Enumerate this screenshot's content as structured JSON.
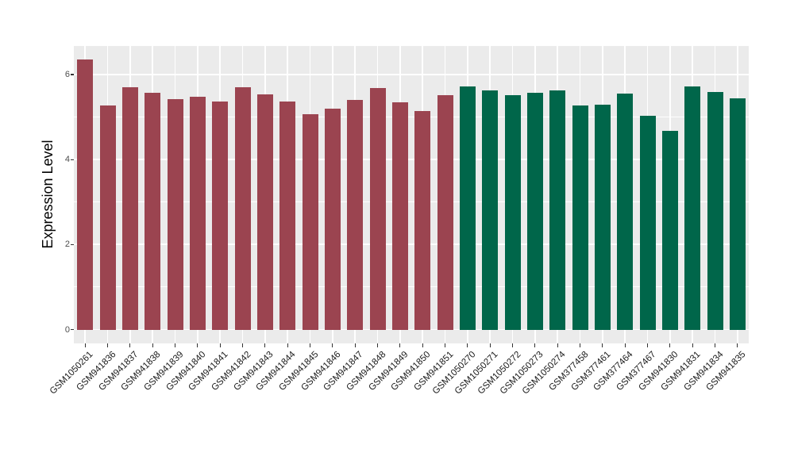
{
  "figure": {
    "background_color": "#FFFFFF",
    "panel_background_color": "#EBEBEB",
    "gridline_color": "#FFFFFF",
    "axis_text_color": "#4D4D4D",
    "x_label_color": "#1a1a1a",
    "axis_title_color": "#000000"
  },
  "chart_data": {
    "type": "bar",
    "title": "",
    "xlabel": "",
    "ylabel": "Expression Level",
    "ylim": [
      0,
      6.7
    ],
    "yticks_major": [
      0,
      2,
      4,
      6
    ],
    "yticks_minor": [
      1,
      3,
      5
    ],
    "grid": true,
    "legend": false,
    "categories": [
      "GSM1050261",
      "GSM941836",
      "GSM941837",
      "GSM941838",
      "GSM941839",
      "GSM941840",
      "GSM941841",
      "GSM941842",
      "GSM941843",
      "GSM941844",
      "GSM941845",
      "GSM941846",
      "GSM941847",
      "GSM941848",
      "GSM941849",
      "GSM941850",
      "GSM941851",
      "GSM1050270",
      "GSM1050271",
      "GSM1050272",
      "GSM1050273",
      "GSM1050274",
      "GSM377458",
      "GSM377461",
      "GSM377464",
      "GSM377467",
      "GSM941830",
      "GSM941831",
      "GSM941834",
      "GSM941835"
    ],
    "values": [
      6.36,
      5.27,
      5.7,
      5.58,
      5.42,
      5.48,
      5.37,
      5.71,
      5.53,
      5.37,
      5.06,
      5.2,
      5.41,
      5.69,
      5.35,
      5.15,
      5.51,
      5.73,
      5.63,
      5.52,
      5.58,
      5.63,
      5.28,
      5.3,
      5.55,
      5.04,
      4.68,
      5.72,
      5.6,
      5.45
    ],
    "bar_groups": [
      "group-1",
      "group-1",
      "group-1",
      "group-1",
      "group-1",
      "group-1",
      "group-1",
      "group-1",
      "group-1",
      "group-1",
      "group-1",
      "group-1",
      "group-1",
      "group-1",
      "group-1",
      "group-1",
      "group-1",
      "group-2",
      "group-2",
      "group-2",
      "group-2",
      "group-2",
      "group-2",
      "group-2",
      "group-2",
      "group-2",
      "group-2",
      "group-2",
      "group-2",
      "group-2"
    ],
    "group_colors": {
      "group-1": "#9B4450",
      "group-2": "#00664A"
    }
  }
}
